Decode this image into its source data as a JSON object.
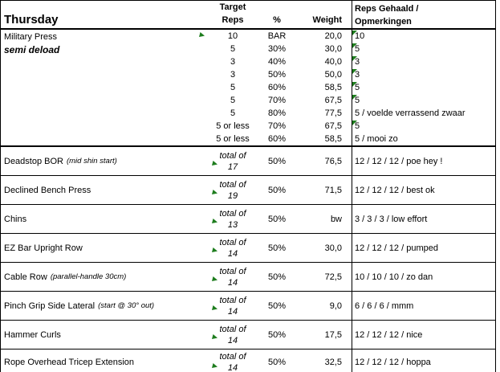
{
  "header": {
    "title": "Thursday",
    "target_line1": "Target",
    "target_line2": "Reps",
    "pct": "%",
    "weight": "Weight",
    "reps_line1": "Reps Gehaald /",
    "reps_line2": "Opmerkingen"
  },
  "labels": {
    "total_of": "total of"
  },
  "main_exercise": {
    "name": "Military Press",
    "note": "semi deload",
    "sets": [
      {
        "target": "10",
        "pct": "BAR",
        "weight": "20,0",
        "result": "10",
        "flag": true
      },
      {
        "target": "5",
        "pct": "30%",
        "weight": "30,0",
        "result": "5",
        "flag": true
      },
      {
        "target": "3",
        "pct": "40%",
        "weight": "40,0",
        "result": "3",
        "flag": true
      },
      {
        "target": "3",
        "pct": "50%",
        "weight": "50,0",
        "result": "3",
        "flag": true
      },
      {
        "target": "5",
        "pct": "60%",
        "weight": "58,5",
        "result": "5",
        "flag": true
      },
      {
        "target": "5",
        "pct": "70%",
        "weight": "67,5",
        "result": "5",
        "flag": true
      },
      {
        "target": "5",
        "pct": "80%",
        "weight": "77,5",
        "result": "5 / voelde verrassend zwaar",
        "flag": false
      },
      {
        "target": "5 or less",
        "pct": "70%",
        "weight": "67,5",
        "result": "5",
        "flag": true
      },
      {
        "target": "5 or less",
        "pct": "60%",
        "weight": "58,5",
        "result": "5 / mooi zo",
        "flag": false
      }
    ]
  },
  "accessories": [
    {
      "name": "Deadstop BOR",
      "note": "(mid shin start)",
      "total": "17",
      "pct": "50%",
      "weight": "76,5",
      "result": "12 / 12 / 12 / poe hey !"
    },
    {
      "name": "Declined Bench Press",
      "note": "",
      "total": "19",
      "pct": "50%",
      "weight": "71,5",
      "result": "12 / 12 / 12 / best ok"
    },
    {
      "name": "Chins",
      "note": "",
      "total": "13",
      "pct": "50%",
      "weight": "bw",
      "result": "3 / 3 / 3 / low effort"
    },
    {
      "name": "EZ Bar Upright Row",
      "note": "",
      "total": "14",
      "pct": "50%",
      "weight": "30,0",
      "result": "12 / 12 / 12 / pumped"
    },
    {
      "name": "Cable Row",
      "note": "(parallel-handle 30cm)",
      "total": "14",
      "pct": "50%",
      "weight": "72,5",
      "result": "10 / 10 / 10 / zo dan"
    },
    {
      "name": "Pinch Grip Side Lateral",
      "note": "(start @ 30° out)",
      "total": "14",
      "pct": "50%",
      "weight": "9,0",
      "result": "6 / 6 / 6 / mmm"
    },
    {
      "name": "Hammer Curls",
      "note": "",
      "total": "14",
      "pct": "50%",
      "weight": "17,5",
      "result": "12 / 12 / 12 / nice"
    },
    {
      "name": "Rope Overhead Tricep Extension",
      "note": "",
      "total": "14",
      "pct": "50%",
      "weight": "32,5",
      "result": "12 / 12 / 12 / hoppa"
    }
  ],
  "colors": {
    "marker_green": "#1e7d1e",
    "grid": "#000000",
    "background": "#ffffff"
  }
}
